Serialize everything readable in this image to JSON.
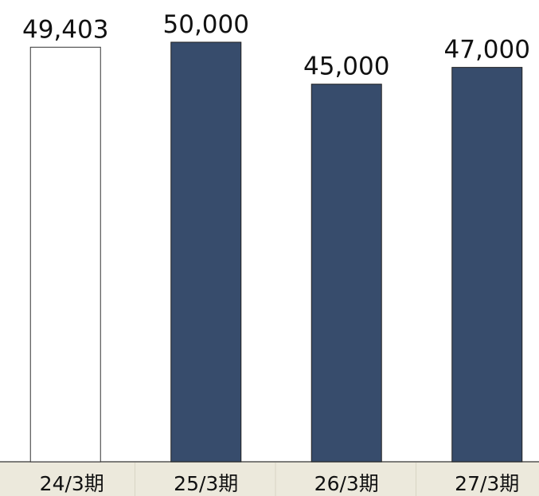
{
  "chart_data": {
    "type": "bar",
    "categories": [
      "24/3期",
      "25/3期",
      "26/3期",
      "27/3期"
    ],
    "values": [
      49403,
      50000,
      45000,
      47000
    ],
    "value_labels": [
      "49,403",
      "50,000",
      "45,000",
      "47,000"
    ],
    "colors": [
      "#ffffff",
      "#374c6c",
      "#374c6c",
      "#374c6c"
    ]
  }
}
